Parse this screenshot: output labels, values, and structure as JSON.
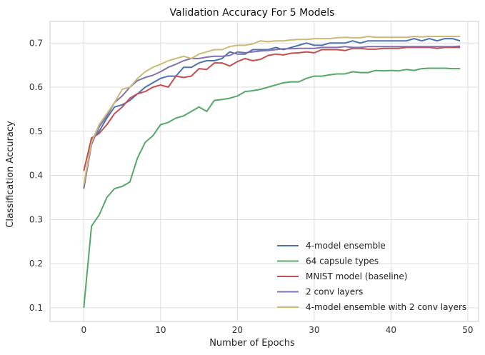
{
  "chart_data": {
    "type": "line",
    "title": "Validation Accuracy For 5 Models",
    "xlabel": "Number of Epochs",
    "ylabel": "Classification Accuracy",
    "xlim": [
      -4.4,
      51.4
    ],
    "ylim": [
      0.069,
      0.749
    ],
    "xticks": [
      0,
      10,
      20,
      30,
      40,
      50
    ],
    "yticks": [
      0.1,
      0.2,
      0.3,
      0.4,
      0.5,
      0.6,
      0.7
    ],
    "grid": true,
    "legend_position": "lower-right",
    "series": [
      {
        "name": "4-model ensemble",
        "color": "#4c72b0",
        "values": [
          0.37,
          0.48,
          0.5,
          0.53,
          0.555,
          0.56,
          0.57,
          0.585,
          0.6,
          0.61,
          0.62,
          0.625,
          0.625,
          0.645,
          0.645,
          0.655,
          0.66,
          0.66,
          0.665,
          0.68,
          0.675,
          0.675,
          0.685,
          0.685,
          0.685,
          0.69,
          0.685,
          0.69,
          0.695,
          0.7,
          0.695,
          0.695,
          0.7,
          0.7,
          0.7,
          0.705,
          0.7,
          0.705,
          0.705,
          0.705,
          0.705,
          0.705,
          0.705,
          0.71,
          0.705,
          0.71,
          0.705,
          0.71,
          0.71,
          0.705
        ]
      },
      {
        "name": "64 capsule types",
        "color": "#55a868",
        "values": [
          0.1,
          0.285,
          0.31,
          0.35,
          0.37,
          0.375,
          0.385,
          0.44,
          0.475,
          0.49,
          0.515,
          0.52,
          0.53,
          0.535,
          0.545,
          0.555,
          0.545,
          0.57,
          0.572,
          0.575,
          0.58,
          0.59,
          0.592,
          0.595,
          0.6,
          0.605,
          0.61,
          0.612,
          0.612,
          0.62,
          0.625,
          0.625,
          0.628,
          0.63,
          0.63,
          0.635,
          0.633,
          0.633,
          0.638,
          0.637,
          0.638,
          0.637,
          0.64,
          0.638,
          0.642,
          0.643,
          0.643,
          0.643,
          0.642,
          0.642
        ]
      },
      {
        "name": "MNIST model (baseline)",
        "color": "#c44e52",
        "values": [
          0.41,
          0.485,
          0.495,
          0.515,
          0.54,
          0.555,
          0.575,
          0.585,
          0.59,
          0.6,
          0.605,
          0.6,
          0.625,
          0.622,
          0.625,
          0.642,
          0.64,
          0.655,
          0.655,
          0.648,
          0.658,
          0.665,
          0.66,
          0.663,
          0.672,
          0.675,
          0.673,
          0.677,
          0.678,
          0.68,
          0.678,
          0.685,
          0.685,
          0.685,
          0.683,
          0.688,
          0.688,
          0.686,
          0.686,
          0.688,
          0.688,
          0.688,
          0.69,
          0.69,
          0.69,
          0.69,
          0.688,
          0.69,
          0.69,
          0.69
        ]
      },
      {
        "name": "2 conv layers",
        "color": "#8172b2",
        "values": [
          0.37,
          0.47,
          0.51,
          0.535,
          0.565,
          0.58,
          0.6,
          0.615,
          0.622,
          0.627,
          0.635,
          0.645,
          0.652,
          0.66,
          0.665,
          0.665,
          0.668,
          0.67,
          0.67,
          0.672,
          0.68,
          0.678,
          0.68,
          0.682,
          0.683,
          0.685,
          0.687,
          0.687,
          0.688,
          0.688,
          0.688,
          0.69,
          0.69,
          0.69,
          0.692,
          0.69,
          0.69,
          0.692,
          0.692,
          0.692,
          0.692,
          0.692,
          0.692,
          0.692,
          0.692,
          0.692,
          0.692,
          0.692,
          0.692,
          0.693
        ]
      },
      {
        "name": "4-model ensemble with 2 conv layers",
        "color": "#ccb974",
        "values": [
          0.38,
          0.475,
          0.515,
          0.54,
          0.565,
          0.595,
          0.6,
          0.62,
          0.635,
          0.645,
          0.652,
          0.66,
          0.665,
          0.67,
          0.665,
          0.675,
          0.68,
          0.685,
          0.685,
          0.692,
          0.695,
          0.695,
          0.698,
          0.705,
          0.703,
          0.705,
          0.705,
          0.707,
          0.708,
          0.708,
          0.71,
          0.71,
          0.71,
          0.712,
          0.713,
          0.712,
          0.712,
          0.715,
          0.713,
          0.713,
          0.713,
          0.713,
          0.713,
          0.715,
          0.714,
          0.715,
          0.715,
          0.715,
          0.715,
          0.715
        ]
      }
    ]
  }
}
